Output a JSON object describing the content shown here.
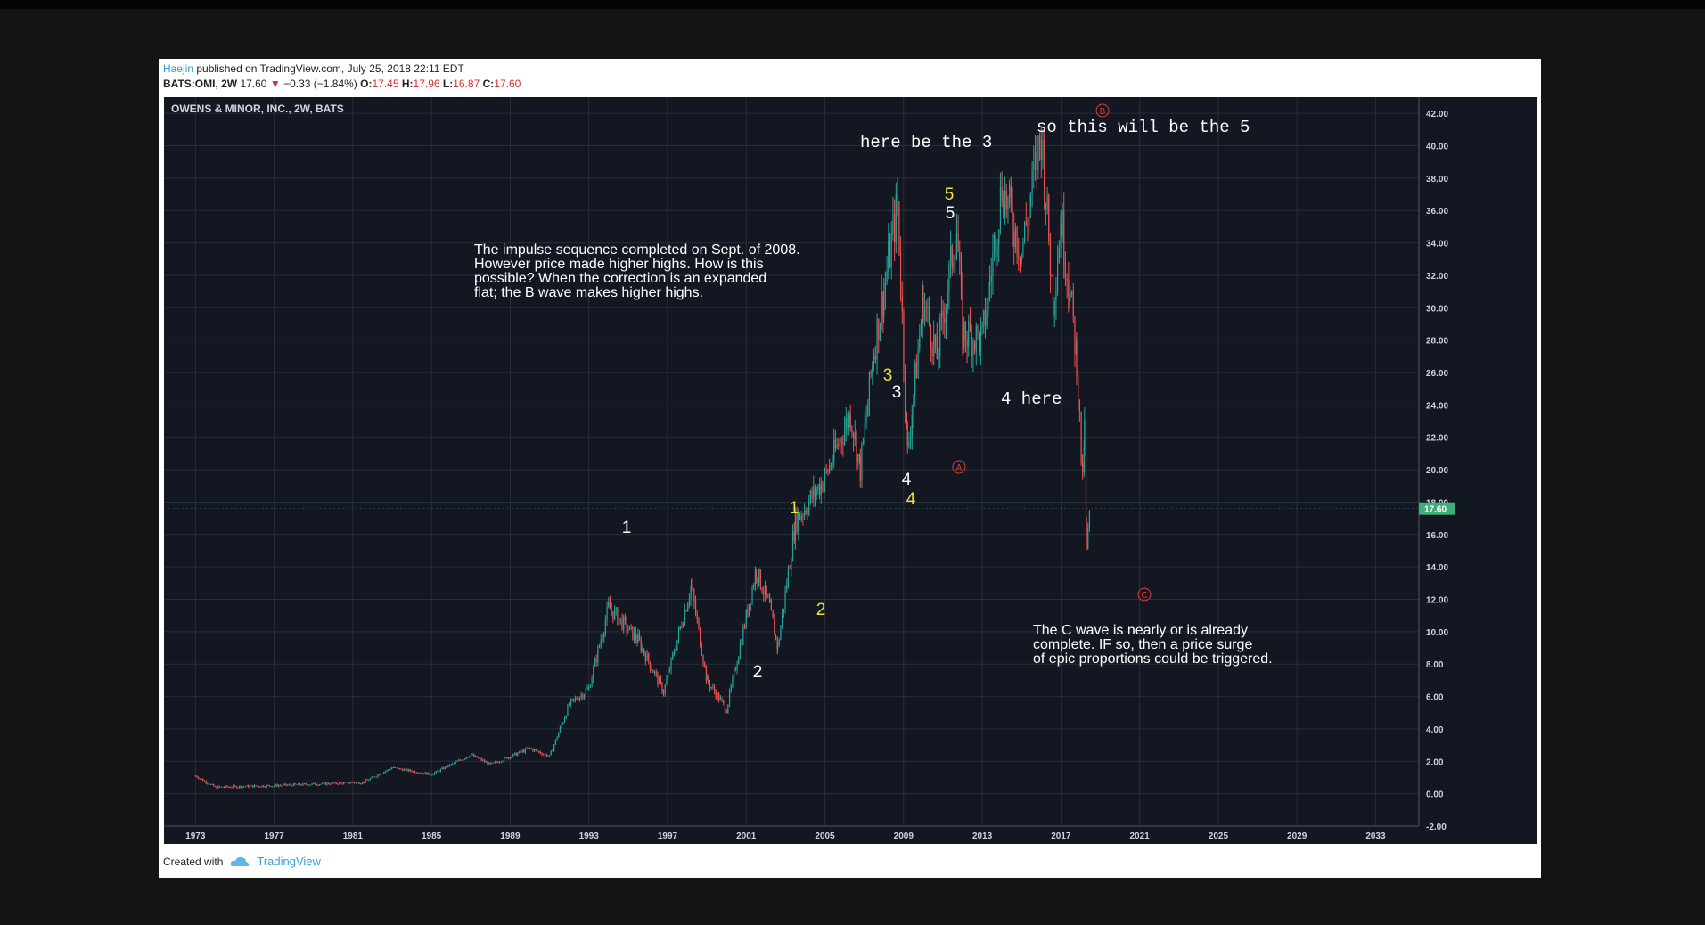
{
  "header": {
    "author": "Haejin",
    "published": " published on TradingView.com, July 25, 2018 22:11 EDT",
    "symbol": "BATS:OMI, 2W",
    "last": "17.60",
    "change": "−0.33 (−1.84%)",
    "o_label": "O:",
    "o_val": "17.45",
    "h_label": "H:",
    "h_val": "17.96",
    "l_label": "L:",
    "l_val": "16.87",
    "c_label": "C:",
    "c_val": "17.60"
  },
  "footer": {
    "created_with": "Created with",
    "brand": "TradingView"
  },
  "colors": {
    "up": "#26a69a",
    "down": "#ef5350",
    "bg": "#131722",
    "grid": "#2a2e39",
    "label_white": "#ffffff",
    "label_yellow": "#f0e040",
    "label_red": "#e53935",
    "last_price_bg": "#3fae7c"
  },
  "chart_data": {
    "type": "candlestick",
    "title": "OWENS & MINOR, INC., 2W, BATS",
    "x_ticks": [
      "1973",
      "1977",
      "1981",
      "1985",
      "1989",
      "1993",
      "1997",
      "2001",
      "2005",
      "2009",
      "2013",
      "2017",
      "2021",
      "2025",
      "2029",
      "2033"
    ],
    "y_ticks": [
      "-2.00",
      "0.00",
      "2.00",
      "4.00",
      "6.00",
      "8.00",
      "10.00",
      "12.00",
      "14.00",
      "16.00",
      "18.00",
      "20.00",
      "22.00",
      "24.00",
      "26.00",
      "28.00",
      "30.00",
      "32.00",
      "34.00",
      "36.00",
      "38.00",
      "40.00",
      "42.00"
    ],
    "ylim": [
      -2.0,
      43.0
    ],
    "xlim": [
      1971.4,
      2035.2
    ],
    "last_price": "17.60",
    "approx_close_path": [
      {
        "x": 1973.0,
        "y": 1.1
      },
      {
        "x": 1974.0,
        "y": 0.4
      },
      {
        "x": 1977.0,
        "y": 0.5
      },
      {
        "x": 1981.5,
        "y": 0.7
      },
      {
        "x": 1983.0,
        "y": 1.6
      },
      {
        "x": 1985.0,
        "y": 1.2
      },
      {
        "x": 1987.0,
        "y": 2.4
      },
      {
        "x": 1988.0,
        "y": 1.8
      },
      {
        "x": 1990.0,
        "y": 2.8
      },
      {
        "x": 1991.0,
        "y": 2.3
      },
      {
        "x": 1992.0,
        "y": 5.5
      },
      {
        "x": 1993.0,
        "y": 6.5
      },
      {
        "x": 1994.0,
        "y": 11.5
      },
      {
        "x": 1995.5,
        "y": 9.5
      },
      {
        "x": 1996.8,
        "y": 6.3
      },
      {
        "x": 1998.2,
        "y": 12.8
      },
      {
        "x": 1999.0,
        "y": 7.0
      },
      {
        "x": 2000.0,
        "y": 5.2
      },
      {
        "x": 2001.5,
        "y": 13.8
      },
      {
        "x": 2002.2,
        "y": 11.5
      },
      {
        "x": 2002.6,
        "y": 9.0
      },
      {
        "x": 2003.5,
        "y": 16.8
      },
      {
        "x": 2005.0,
        "y": 19.5
      },
      {
        "x": 2006.3,
        "y": 23.5
      },
      {
        "x": 2006.8,
        "y": 20.0
      },
      {
        "x": 2007.5,
        "y": 27.5
      },
      {
        "x": 2008.0,
        "y": 31.0
      },
      {
        "x": 2008.7,
        "y": 36.5
      },
      {
        "x": 2009.2,
        "y": 21.0
      },
      {
        "x": 2010.0,
        "y": 30.5
      },
      {
        "x": 2010.7,
        "y": 27.0
      },
      {
        "x": 2011.7,
        "y": 35.0
      },
      {
        "x": 2012.0,
        "y": 28.5
      },
      {
        "x": 2013.0,
        "y": 28.0
      },
      {
        "x": 2014.0,
        "y": 37.5
      },
      {
        "x": 2015.0,
        "y": 33.5
      },
      {
        "x": 2016.0,
        "y": 40.8
      },
      {
        "x": 2016.6,
        "y": 30.5
      },
      {
        "x": 2017.0,
        "y": 35.5
      },
      {
        "x": 2017.4,
        "y": 31.5
      },
      {
        "x": 2017.8,
        "y": 27.0
      },
      {
        "x": 2018.1,
        "y": 19.0
      },
      {
        "x": 2018.2,
        "y": 22.5
      },
      {
        "x": 2018.3,
        "y": 15.0
      },
      {
        "x": 2018.5,
        "y": 17.6
      }
    ]
  },
  "annotations": {
    "wave_white_1": "1",
    "wave_white_2": "2",
    "wave_white_3": "3",
    "wave_white_4": "4",
    "wave_white_5": "5",
    "wave_yellow_1": "1",
    "wave_yellow_2": "2",
    "wave_yellow_3": "3",
    "wave_yellow_4": "4",
    "wave_yellow_5": "5",
    "wave_A": "A",
    "wave_B": "B",
    "wave_C": "C",
    "here_3": "here be the 3",
    "will_5": "so this will be the 5",
    "here_4": "4 here",
    "note1": [
      "The impulse sequence completed on Sept. of 2008.",
      "However price made higher highs. How is this",
      "possible? When the correction is an expanded",
      "flat; the B wave makes higher highs."
    ],
    "note2": [
      "The C wave is nearly or is already",
      "complete. IF so, then a price surge",
      "of epic proportions could be triggered."
    ]
  }
}
